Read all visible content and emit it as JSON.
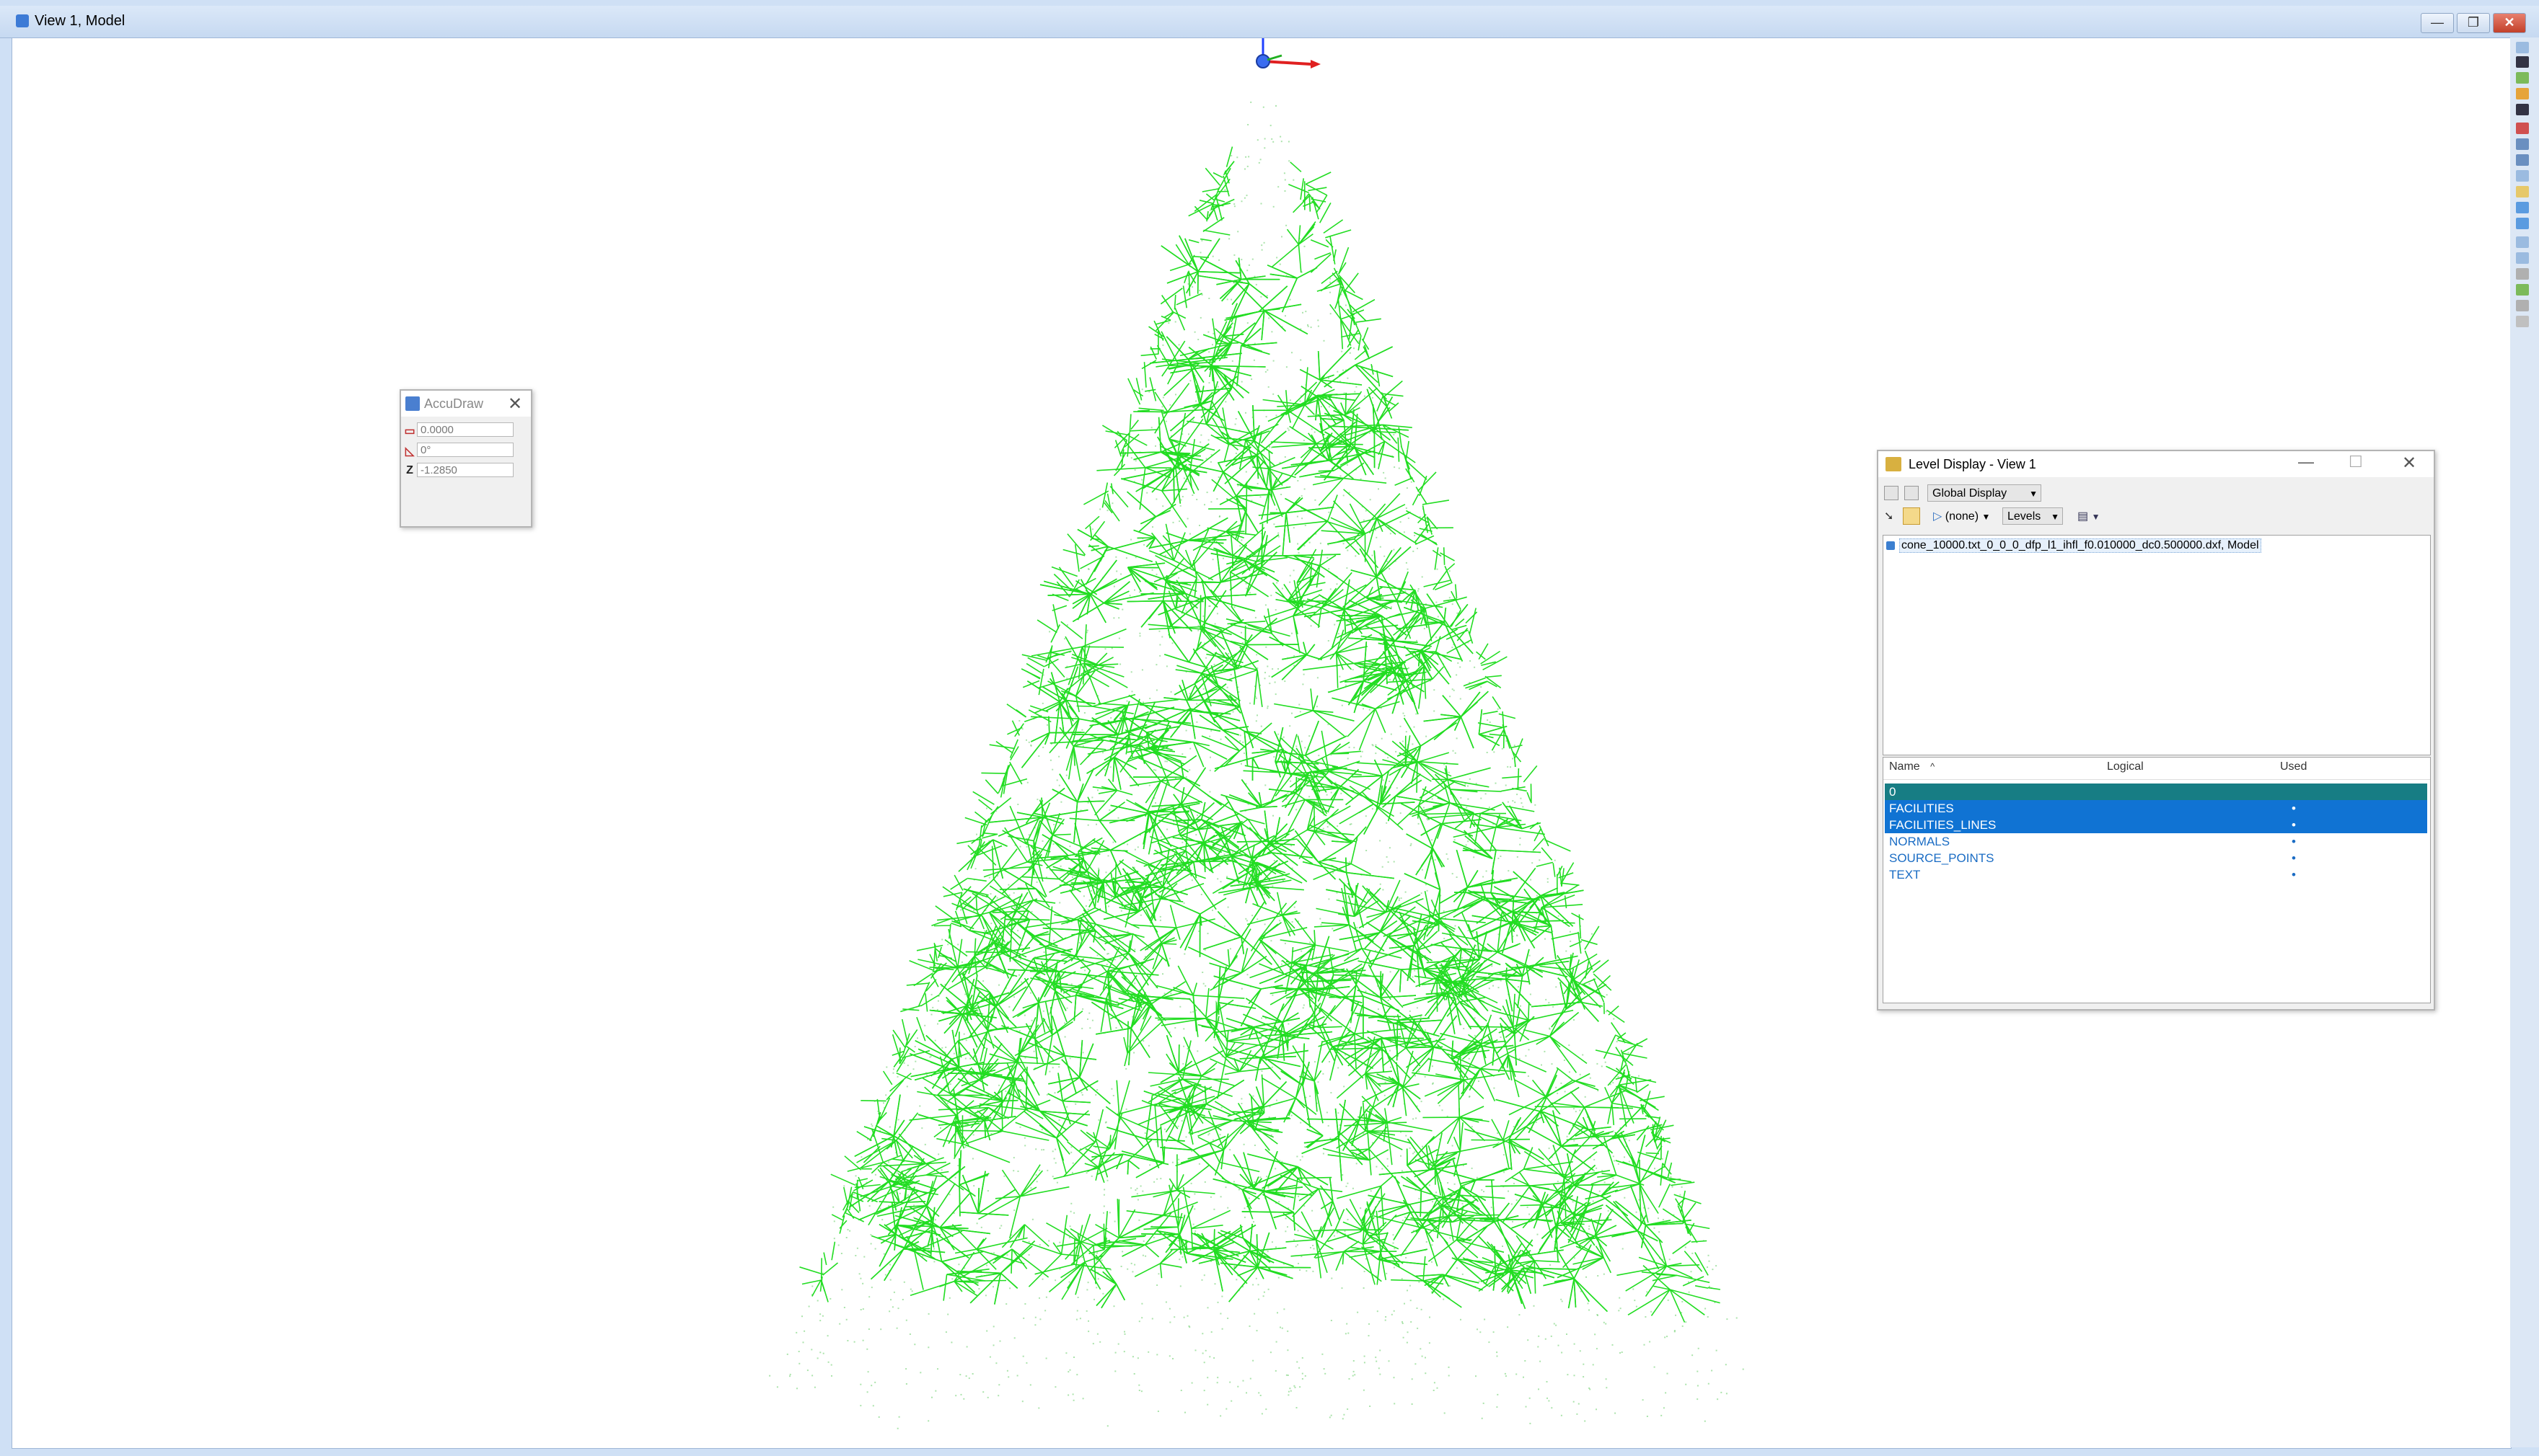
{
  "window": {
    "title": "View 1, Model",
    "minimize_glyph": "—",
    "restore_glyph": "❐",
    "close_glyph": "✕"
  },
  "accudraw": {
    "title": "AccuDraw",
    "close_glyph": "✕",
    "fields": [
      {
        "label": "",
        "icon": "distance-icon",
        "value": "0.0000"
      },
      {
        "label": "",
        "icon": "angle-icon",
        "value": "0°"
      },
      {
        "label": "Z",
        "icon": "",
        "value": "-1.2850"
      }
    ]
  },
  "level_display": {
    "title": "Level Display - View 1",
    "minimize_glyph": "—",
    "maximize_glyph": "☐",
    "close_glyph": "✕",
    "display_mode": "Global Display",
    "filter_value": "(none)",
    "type_value": "Levels",
    "file_tree_item": "cone_10000.txt_0_0_0_dfp_l1_ihfl_f0.010000_dc0.500000.dxf, Model",
    "columns": {
      "name": "Name",
      "logical": "Logical",
      "used": "Used",
      "sort_glyph": "^"
    },
    "levels": [
      {
        "name": "0",
        "used": "",
        "state": "active"
      },
      {
        "name": "FACILITIES",
        "used": "•",
        "state": "selected"
      },
      {
        "name": "FACILITIES_LINES",
        "used": "•",
        "state": "selected"
      },
      {
        "name": "NORMALS",
        "used": "•",
        "state": "normal"
      },
      {
        "name": "SOURCE_POINTS",
        "used": "•",
        "state": "normal"
      },
      {
        "name": "TEXT",
        "used": "•",
        "state": "normal"
      }
    ]
  },
  "colors": {
    "normal_lines": "#22dd22",
    "points": "#66cc66",
    "selection_blue": "#1073d3",
    "active_teal": "#177d84"
  }
}
